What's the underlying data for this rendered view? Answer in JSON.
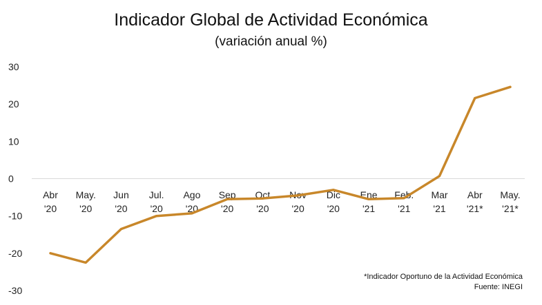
{
  "chart_data": {
    "type": "line",
    "title": "Indicador Global de Actividad Económica",
    "subtitle": "(variación anual %)",
    "xlabel": "",
    "ylabel": "",
    "ylim": [
      -30,
      30
    ],
    "yticks": [
      30,
      20,
      10,
      0,
      -10,
      -20,
      -30
    ],
    "grid": false,
    "legend": "none",
    "categories": [
      [
        "Abr",
        "'20"
      ],
      [
        "May.",
        "'20"
      ],
      [
        "Jun",
        "'20"
      ],
      [
        "Jul.",
        "'20"
      ],
      [
        "Ago",
        "'20"
      ],
      [
        "Sep",
        "'20"
      ],
      [
        "Oct",
        "'20"
      ],
      [
        "Nov",
        "'20"
      ],
      [
        "Dic",
        "'20"
      ],
      [
        "Ene",
        "'21"
      ],
      [
        "Feb.",
        "'21"
      ],
      [
        "Mar",
        "'21"
      ],
      [
        "Abr",
        "'21*"
      ],
      [
        "May.",
        "'21*"
      ]
    ],
    "series": [
      {
        "color": "#C8872A",
        "values": [
          -20.0,
          -22.5,
          -13.5,
          -10.0,
          -9.3,
          -5.5,
          -5.3,
          -4.5,
          -3.0,
          -5.5,
          -5.2,
          0.7,
          21.6,
          24.6
        ]
      }
    ],
    "footnotes": [
      "*Indicador Oportuno de la Actividad Económica",
      "Fuente: INEGI"
    ]
  }
}
